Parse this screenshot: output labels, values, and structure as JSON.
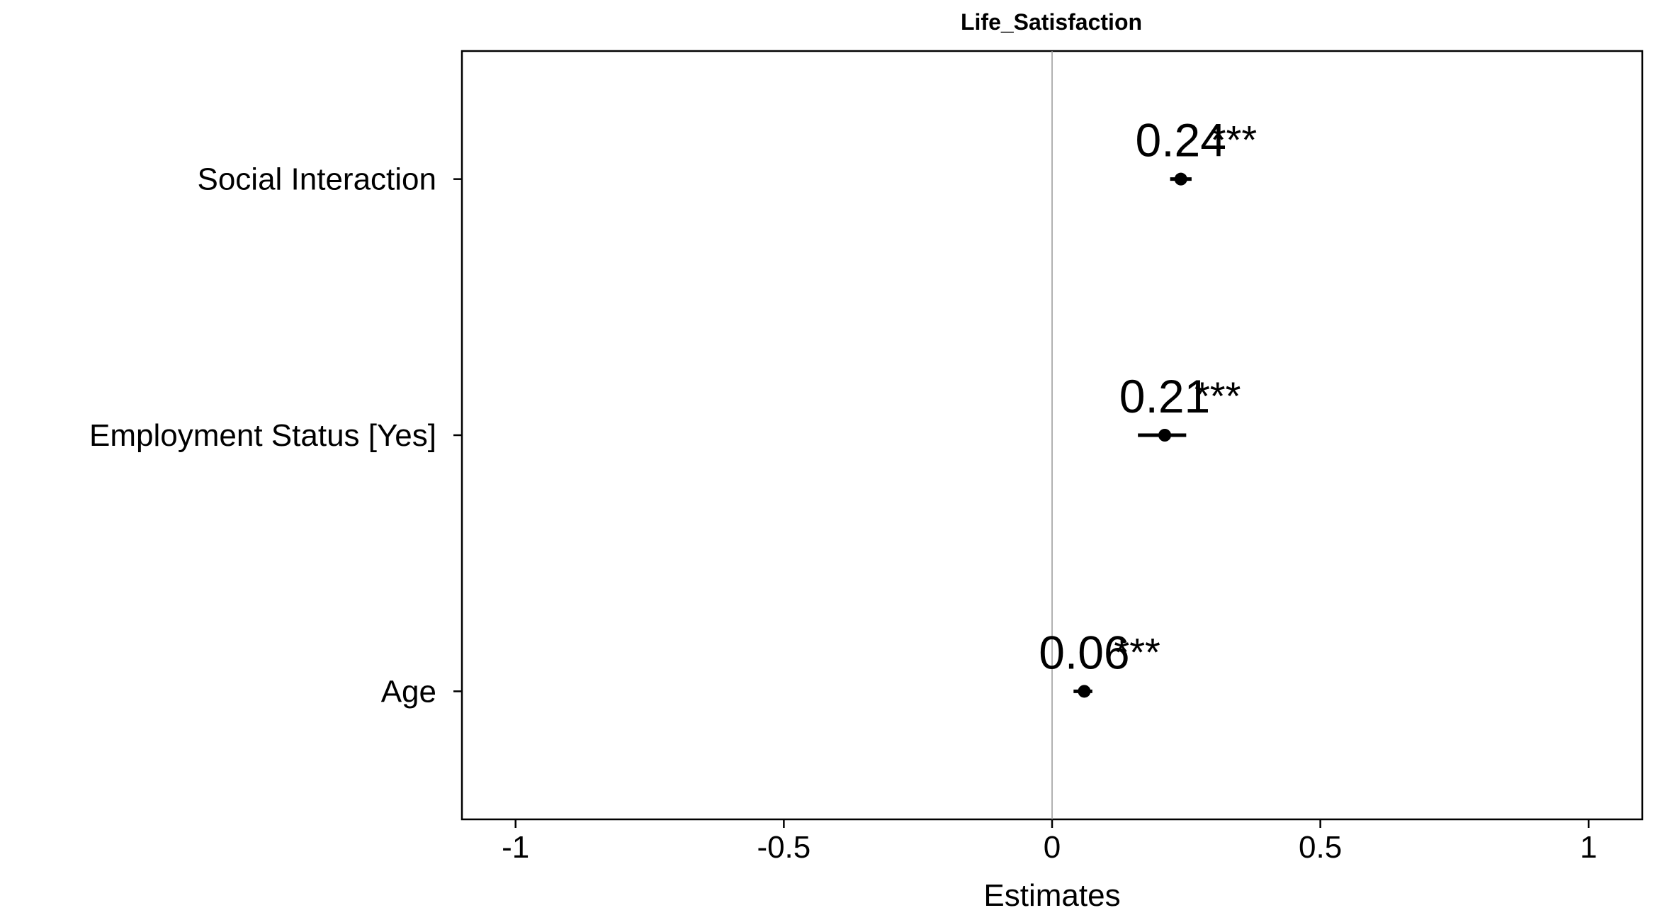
{
  "chart_data": {
    "type": "scatter",
    "subtype": "coefficient-plot",
    "title": "Life_Satisfaction",
    "xlabel": "Estimates",
    "ylabel": "",
    "xlim": [
      -1.1,
      1.1
    ],
    "xticks": [
      -1,
      -0.5,
      0,
      0.5,
      1
    ],
    "xtick_labels": [
      "-1",
      "-0.5",
      "0",
      "0.5",
      "1"
    ],
    "grid": false,
    "reference_line": 0,
    "terms": [
      {
        "label": "Social Interaction",
        "estimate": 0.24,
        "ci_low": 0.22,
        "ci_high": 0.26,
        "estimate_label": "0.24",
        "significance": "***"
      },
      {
        "label": "Employment Status [Yes]",
        "estimate": 0.21,
        "ci_low": 0.16,
        "ci_high": 0.25,
        "estimate_label": "0.21",
        "significance": "***"
      },
      {
        "label": "Age",
        "estimate": 0.06,
        "ci_low": 0.04,
        "ci_high": 0.075,
        "estimate_label": "0.06",
        "significance": "***"
      }
    ],
    "colors": {
      "point": "#000000",
      "axis": "#000000",
      "reference": "#999999"
    }
  }
}
